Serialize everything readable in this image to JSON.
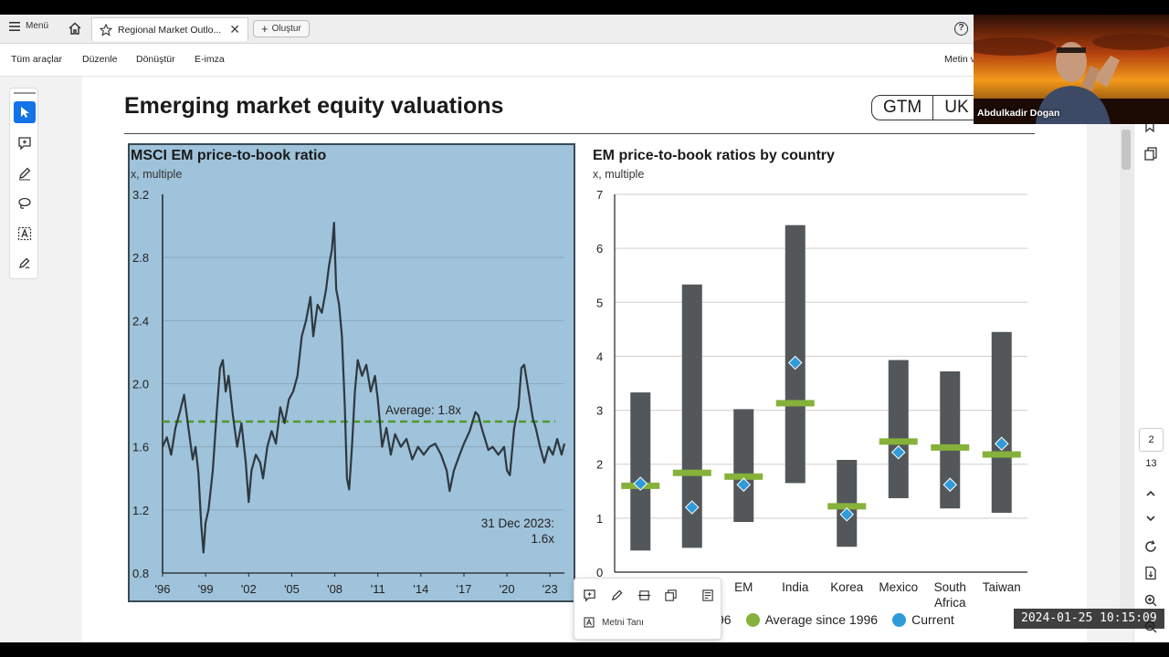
{
  "app": {
    "menu_label": "Menü",
    "tab_title": "Regional Market Outlo...",
    "tab_close": "✕",
    "create_label": "Oluştur",
    "help_glyph": "?",
    "tools": [
      "Tüm araçlar",
      "Düzenle",
      "Dönüştür",
      "E-imza"
    ],
    "right_menu": "Metin v",
    "page_current": "2",
    "page_total": "13",
    "popup_ocr_label": "Metni Tanı"
  },
  "slide": {
    "title": "Emerging market equity valuations",
    "badge": [
      "GTM",
      "UK"
    ]
  },
  "chart_data": [
    {
      "type": "line",
      "title": "MSCI EM price-to-book ratio",
      "ylabel": "x, multiple",
      "ylim": [
        0.8,
        3.2
      ],
      "yticks": [
        "3.2",
        "2.8",
        "2.4",
        "2.0",
        "1.6",
        "1.2",
        "0.8"
      ],
      "xticks": [
        "'96",
        "'99",
        "'02",
        "'05",
        "'08",
        "'11",
        "'14",
        "'17",
        "'20",
        "'23"
      ],
      "xlim": [
        1996,
        2024
      ],
      "average": 1.76,
      "average_label": "Average: 1.8x",
      "annotation": [
        "31 Dec 2023:",
        "1.6x"
      ],
      "series": [
        {
          "x": [
            1996,
            1996.3,
            1996.6,
            1996.9,
            1997.2,
            1997.5,
            1997.8,
            1998.1,
            1998.3,
            1998.5,
            1998.7,
            1998.85,
            1999.0,
            1999.2,
            1999.5,
            1999.8,
            2000.0,
            2000.2,
            2000.4,
            2000.6,
            2000.9,
            2001.2,
            2001.5,
            2001.8,
            2002.0,
            2002.2,
            2002.5,
            2002.8,
            2003.0,
            2003.3,
            2003.6,
            2003.9,
            2004.2,
            2004.5,
            2004.8,
            2005.1,
            2005.4,
            2005.7,
            2006.0,
            2006.3,
            2006.5,
            2006.8,
            2007.1,
            2007.4,
            2007.6,
            2007.8,
            2007.95,
            2008.1,
            2008.3,
            2008.5,
            2008.7,
            2008.85,
            2009.0,
            2009.2,
            2009.4,
            2009.6,
            2009.9,
            2010.2,
            2010.5,
            2010.8,
            2011.0,
            2011.3,
            2011.6,
            2011.9,
            2012.2,
            2012.6,
            2013.0,
            2013.4,
            2013.8,
            2014.2,
            2014.6,
            2015.0,
            2015.4,
            2015.8,
            2016.0,
            2016.3,
            2016.7,
            2017.0,
            2017.4,
            2017.8,
            2018.0,
            2018.3,
            2018.7,
            2019.0,
            2019.4,
            2019.8,
            2020.0,
            2020.2,
            2020.5,
            2020.8,
            2021.0,
            2021.2,
            2021.5,
            2021.8,
            2022.0,
            2022.3,
            2022.6,
            2022.9,
            2023.2,
            2023.5,
            2023.8,
            2024.0
          ],
          "y": [
            1.6,
            1.66,
            1.55,
            1.72,
            1.82,
            1.93,
            1.72,
            1.52,
            1.6,
            1.43,
            1.1,
            0.93,
            1.12,
            1.2,
            1.45,
            1.85,
            2.1,
            2.15,
            1.95,
            2.05,
            1.8,
            1.6,
            1.75,
            1.5,
            1.25,
            1.45,
            1.55,
            1.5,
            1.4,
            1.6,
            1.7,
            1.62,
            1.85,
            1.75,
            1.9,
            1.95,
            2.05,
            2.3,
            2.4,
            2.55,
            2.3,
            2.5,
            2.45,
            2.6,
            2.75,
            2.85,
            3.02,
            2.6,
            2.5,
            2.3,
            1.85,
            1.4,
            1.33,
            1.6,
            1.95,
            2.15,
            2.05,
            2.12,
            1.95,
            2.05,
            1.9,
            1.6,
            1.72,
            1.55,
            1.68,
            1.6,
            1.65,
            1.52,
            1.6,
            1.55,
            1.6,
            1.62,
            1.55,
            1.45,
            1.32,
            1.45,
            1.55,
            1.62,
            1.7,
            1.82,
            1.8,
            1.7,
            1.58,
            1.6,
            1.55,
            1.6,
            1.45,
            1.42,
            1.72,
            1.85,
            2.1,
            2.12,
            1.95,
            1.78,
            1.72,
            1.6,
            1.5,
            1.6,
            1.55,
            1.65,
            1.55,
            1.62
          ]
        }
      ]
    },
    {
      "type": "bar",
      "title": "EM price-to-book ratios by country",
      "ylabel": "x, multiple",
      "ylim": [
        0,
        7
      ],
      "yticks": [
        "7",
        "6",
        "5",
        "4",
        "3",
        "2",
        "1",
        "0"
      ],
      "categories": [
        "",
        "",
        "EM",
        "India",
        "Korea",
        "Mexico",
        "South Africa",
        "Taiwan"
      ],
      "range_low": [
        0.4,
        0.45,
        0.93,
        1.65,
        0.47,
        1.37,
        1.18,
        1.1
      ],
      "range_high": [
        3.33,
        5.33,
        3.02,
        6.43,
        2.08,
        3.93,
        3.72,
        4.45
      ],
      "average_since_1996": [
        1.6,
        1.84,
        1.77,
        3.13,
        1.22,
        2.42,
        2.31,
        2.18
      ],
      "current": [
        1.64,
        1.2,
        1.62,
        3.88,
        1.07,
        2.22,
        1.62,
        2.38
      ],
      "colors": {
        "range": "#54575a",
        "average": "#86b13a",
        "current": "#2f9bd8"
      },
      "legend": [
        "96",
        "Average since 1996",
        "Current"
      ]
    }
  ],
  "overlay": {
    "participant_name": "Abdulkadir Dogan",
    "timestamp": "2024-01-25  10:15:09"
  }
}
